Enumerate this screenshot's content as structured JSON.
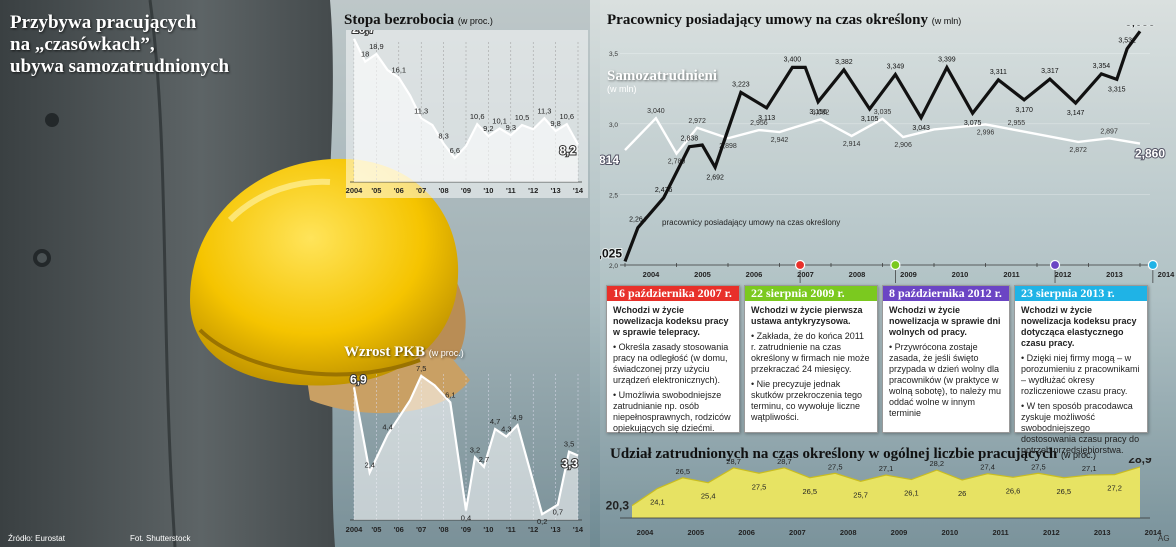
{
  "headline": {
    "line1": "Przybywa pracujących",
    "line2": "na „czasówkach”,",
    "line3": "ubywa samozatrudnionych"
  },
  "footer": {
    "source": "Źródło: Eurostat",
    "photo": "Fot. Shutterstock",
    "credit": "AG"
  },
  "colors": {
    "red": "#e8302a",
    "green": "#7bc91f",
    "purple": "#6b45c4",
    "cyan": "#1fb3e6",
    "yellow_fill": "#f2ea5c",
    "black_line": "#111111",
    "white_line": "#ffffff"
  },
  "chart_data": [
    {
      "id": "unemployment",
      "type": "line",
      "title": "Stopa bezrobocia",
      "unit": "(w proc.)",
      "x_ticks": [
        "2004",
        "'05",
        "'06",
        "'07",
        "'08",
        "'09",
        "'10",
        "'11",
        "'12",
        "'13",
        "'14"
      ],
      "points": [
        {
          "x": 2004.0,
          "y": 20.7,
          "label": "20,7"
        },
        {
          "x": 2004.5,
          "y": 18.0,
          "label": "18"
        },
        {
          "x": 2005.0,
          "y": 18.9,
          "label": "18,9"
        },
        {
          "x": 2005.5,
          "y": 17.0
        },
        {
          "x": 2006.0,
          "y": 16.1,
          "label": "16,1"
        },
        {
          "x": 2006.5,
          "y": 14.0
        },
        {
          "x": 2007.0,
          "y": 11.3,
          "label": "11,3"
        },
        {
          "x": 2007.5,
          "y": 10.5
        },
        {
          "x": 2008.0,
          "y": 8.3,
          "label": "8,3"
        },
        {
          "x": 2008.5,
          "y": 6.6,
          "label": "6,6"
        },
        {
          "x": 2009.0,
          "y": 8.0
        },
        {
          "x": 2009.5,
          "y": 10.6,
          "label": "10,6"
        },
        {
          "x": 2010.0,
          "y": 9.2,
          "label": "9,2"
        },
        {
          "x": 2010.5,
          "y": 10.1,
          "label": "10,1"
        },
        {
          "x": 2011.0,
          "y": 9.3,
          "label": "9,3"
        },
        {
          "x": 2011.5,
          "y": 10.5,
          "label": "10,5"
        },
        {
          "x": 2012.0,
          "y": 10.0
        },
        {
          "x": 2012.5,
          "y": 11.3,
          "label": "11,3"
        },
        {
          "x": 2013.0,
          "y": 9.8,
          "label": "9,8"
        },
        {
          "x": 2013.5,
          "y": 10.6,
          "label": "10,6"
        },
        {
          "x": 2014.0,
          "y": 8.2,
          "label": "8,2"
        }
      ]
    },
    {
      "id": "gdp",
      "type": "line",
      "title": "Wzrost PKB",
      "unit": "(w proc.)",
      "x_ticks": [
        "2004",
        "'05",
        "'06",
        "'07",
        "'08",
        "'09",
        "'10",
        "'11",
        "'12",
        "'13",
        "'14"
      ],
      "points": [
        {
          "x": 2004.0,
          "y": 6.9,
          "label": "6,9"
        },
        {
          "x": 2004.7,
          "y": 2.4,
          "label": "2,4"
        },
        {
          "x": 2005.5,
          "y": 4.4,
          "label": "4,4"
        },
        {
          "x": 2006.5,
          "y": 6.2
        },
        {
          "x": 2007.0,
          "y": 7.5,
          "label": "7,5"
        },
        {
          "x": 2007.6,
          "y": 7.0
        },
        {
          "x": 2008.3,
          "y": 6.1,
          "label": "6,1"
        },
        {
          "x": 2009.0,
          "y": 0.4,
          "label": "0,4"
        },
        {
          "x": 2009.4,
          "y": 3.2,
          "label": "3,2"
        },
        {
          "x": 2009.8,
          "y": 2.7,
          "label": "2,7"
        },
        {
          "x": 2010.3,
          "y": 4.7,
          "label": "4,7"
        },
        {
          "x": 2010.8,
          "y": 4.3,
          "label": "4,3"
        },
        {
          "x": 2011.3,
          "y": 4.9,
          "label": "4,9"
        },
        {
          "x": 2012.4,
          "y": 0.2,
          "label": "0,2"
        },
        {
          "x": 2013.1,
          "y": 0.7,
          "label": "0,7"
        },
        {
          "x": 2013.6,
          "y": 3.5,
          "label": "3,5"
        },
        {
          "x": 2014.0,
          "y": 3.3,
          "label": "3,3"
        }
      ]
    },
    {
      "id": "contracts",
      "type": "line",
      "title": "Pracownicy posiadający umowy na czas określony",
      "unit": "(w mln)",
      "y_ticks": [
        "2,0",
        "2,5",
        "3,0",
        "3,5"
      ],
      "ylim": [
        2.0,
        3.7
      ],
      "x_ticks": [
        "2004",
        "2005",
        "2006",
        "2007",
        "2008",
        "2009",
        "2010",
        "2011",
        "2012",
        "2013",
        "2014"
      ],
      "series": [
        {
          "name": "pracownicy posiadający umowy na czas określony",
          "color": "#111111",
          "points": [
            {
              "x": 2004.0,
              "y": 2.025,
              "label": "2,025"
            },
            {
              "x": 2004.25,
              "y": 2.264,
              "label": "2,264"
            },
            {
              "x": 2004.75,
              "y": 2.476,
              "label": "2,476"
            },
            {
              "x": 2005.25,
              "y": 2.838,
              "label": "2,838"
            },
            {
              "x": 2005.5,
              "y": 2.85
            },
            {
              "x": 2005.75,
              "y": 2.692,
              "label": "2,692"
            },
            {
              "x": 2006.25,
              "y": 3.223,
              "label": "3,223"
            },
            {
              "x": 2006.75,
              "y": 3.113,
              "label": "3,113"
            },
            {
              "x": 2007.25,
              "y": 3.4,
              "label": "3,400"
            },
            {
              "x": 2007.5,
              "y": 3.4
            },
            {
              "x": 2007.75,
              "y": 3.156,
              "label": "3,156"
            },
            {
              "x": 2008.25,
              "y": 3.382,
              "label": "3,382"
            },
            {
              "x": 2008.75,
              "y": 3.105,
              "label": "3,105"
            },
            {
              "x": 2009.25,
              "y": 3.349,
              "label": "3,349"
            },
            {
              "x": 2009.75,
              "y": 3.043,
              "label": "3,043"
            },
            {
              "x": 2010.25,
              "y": 3.399,
              "label": "3,399"
            },
            {
              "x": 2010.75,
              "y": 3.075,
              "label": "3,075"
            },
            {
              "x": 2011.25,
              "y": 3.311,
              "label": "3,311"
            },
            {
              "x": 2011.75,
              "y": 3.17,
              "label": "3,170"
            },
            {
              "x": 2012.25,
              "y": 3.317,
              "label": "3,317"
            },
            {
              "x": 2012.75,
              "y": 3.147,
              "label": "3,147"
            },
            {
              "x": 2013.25,
              "y": 3.354,
              "label": "3,354"
            },
            {
              "x": 2013.55,
              "y": 3.315,
              "label": "3,315"
            },
            {
              "x": 2013.75,
              "y": 3.532,
              "label": "3,532"
            },
            {
              "x": 2014.0,
              "y": 3.655,
              "label": "3,655"
            }
          ]
        },
        {
          "name": "Samozatrudnieni",
          "unit": "(w mln)",
          "color": "#ffffff",
          "points": [
            {
              "x": 2004.0,
              "y": 2.814,
              "label": "2,814"
            },
            {
              "x": 2004.6,
              "y": 3.04,
              "label": "3,040"
            },
            {
              "x": 2005.0,
              "y": 2.789,
              "label": "2,789"
            },
            {
              "x": 2005.4,
              "y": 2.972,
              "label": "2,972"
            },
            {
              "x": 2006.0,
              "y": 2.898,
              "label": "2,898"
            },
            {
              "x": 2006.6,
              "y": 2.956,
              "label": "2,956"
            },
            {
              "x": 2007.0,
              "y": 2.942,
              "label": "2,942"
            },
            {
              "x": 2007.8,
              "y": 3.032,
              "label": "3,032"
            },
            {
              "x": 2008.4,
              "y": 2.914,
              "label": "2,914"
            },
            {
              "x": 2009.0,
              "y": 3.035,
              "label": "3,035"
            },
            {
              "x": 2009.4,
              "y": 2.906,
              "label": "2,906"
            },
            {
              "x": 2010.0,
              "y": 2.96
            },
            {
              "x": 2011.0,
              "y": 2.996,
              "label": "2,996"
            },
            {
              "x": 2011.6,
              "y": 2.955,
              "label": "2,955"
            },
            {
              "x": 2012.8,
              "y": 2.872,
              "label": "2,872"
            },
            {
              "x": 2013.4,
              "y": 2.897,
              "label": "2,897"
            },
            {
              "x": 2014.0,
              "y": 2.86,
              "label": "2,860"
            }
          ]
        }
      ]
    },
    {
      "id": "share",
      "type": "area",
      "title": "Udział zatrudnionych na czas określony w ogólnej liczbie pracujących",
      "unit": "(w proc.)",
      "x_ticks": [
        "2004",
        "2005",
        "2006",
        "2007",
        "2008",
        "2009",
        "2010",
        "2011",
        "2012",
        "2013",
        "2014"
      ],
      "points": [
        {
          "x": 2004.0,
          "y": 20.3,
          "label": "20,3"
        },
        {
          "x": 2004.5,
          "y": 24.1,
          "label": "24,1"
        },
        {
          "x": 2005.0,
          "y": 26.5,
          "label": "26,5"
        },
        {
          "x": 2005.5,
          "y": 25.4,
          "label": "25,4"
        },
        {
          "x": 2006.0,
          "y": 28.7,
          "label": "28,7"
        },
        {
          "x": 2006.5,
          "y": 27.5,
          "label": "27,5"
        },
        {
          "x": 2007.0,
          "y": 28.7,
          "label": "28,7"
        },
        {
          "x": 2007.5,
          "y": 26.5,
          "label": "26,5"
        },
        {
          "x": 2008.0,
          "y": 27.5,
          "label": "27,5"
        },
        {
          "x": 2008.5,
          "y": 25.7,
          "label": "25,7"
        },
        {
          "x": 2009.0,
          "y": 27.1,
          "label": "27,1"
        },
        {
          "x": 2009.5,
          "y": 26.1,
          "label": "26,1"
        },
        {
          "x": 2010.0,
          "y": 28.2,
          "label": "28,2"
        },
        {
          "x": 2010.5,
          "y": 26.0,
          "label": "26"
        },
        {
          "x": 2011.0,
          "y": 27.4,
          "label": "27,4"
        },
        {
          "x": 2011.5,
          "y": 26.6,
          "label": "26,6"
        },
        {
          "x": 2012.0,
          "y": 27.5,
          "label": "27,5"
        },
        {
          "x": 2012.5,
          "y": 26.5,
          "label": "26,5"
        },
        {
          "x": 2013.0,
          "y": 27.1,
          "label": "27,1"
        },
        {
          "x": 2013.5,
          "y": 27.2,
          "label": "27,2"
        },
        {
          "x": 2014.0,
          "y": 28.9,
          "label": "28,9"
        }
      ]
    }
  ],
  "events": [
    {
      "date": "16 października 2007 r.",
      "color": "#e8302a",
      "x": 2007.4,
      "lead": "Wchodzi w życie nowelizacja kodeksu pracy w sprawie telepracy.",
      "bullets": [
        "• Określa zasady stosowania pracy na odległość (w domu, świadczonej przy użyciu urządzeń elektronicznych).",
        "• Umożliwia swobodniejsze zatrudnianie np. osób niepełnosprawnych, rodziców opiekujących się dziećmi."
      ]
    },
    {
      "date": "22 sierpnia 2009 r.",
      "color": "#7bc91f",
      "x": 2009.25,
      "lead": "Wchodzi w życie pierwsza ustawa antykryzysowa.",
      "bullets": [
        "• Zakłada, że do końca 2011 r. zatrudnienie na czas określony w firmach nie może przekraczać 24 miesięcy.",
        "• Nie precyzuje jednak skutków przekroczenia tego terminu, co wywołuje liczne wątpliwości."
      ]
    },
    {
      "date": "8 października 2012 r.",
      "color": "#6b45c4",
      "x": 2012.35,
      "lead": "Wchodzi w życie nowelizacja w sprawie dni wolnych od pracy.",
      "bullets": [
        "• Przywrócona zostaje zasada, że jeśli święto przypada w dzień wolny dla pracowników (w praktyce w wolną sobotę), to należy mu oddać wolne w innym terminie"
      ]
    },
    {
      "date": "23 sierpnia 2013 r.",
      "color": "#1fb3e6",
      "x": 2014.25,
      "lead": "Wchodzi w życie nowelizacja kodeksu pracy dotycząca elastycznego czasu pracy.",
      "bullets": [
        "• Dzięki niej firmy mogą – w porozumieniu z pracownikami – wydłużać okresy rozliczeniowe czasu pracy.",
        "• W ten sposób pracodawca zyskuje możliwość swobodniejszego dostosowania czasu pracy do potrzeb przedsiębiorstwa."
      ]
    }
  ]
}
